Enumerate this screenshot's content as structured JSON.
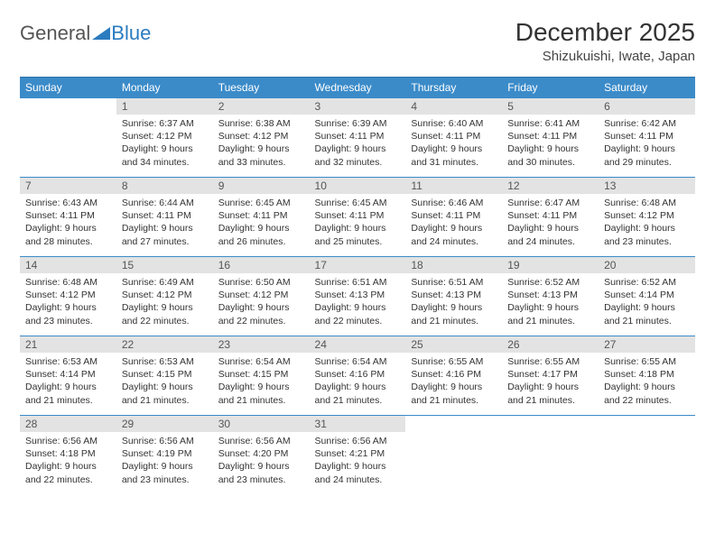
{
  "brand": {
    "part1": "General",
    "part2": "Blue"
  },
  "colors": {
    "header_bg": "#3b8bc9",
    "header_text": "#ffffff",
    "daynum_bg": "#e3e3e3",
    "border": "#3b8bc9",
    "brand_blue": "#2b7bbf",
    "text": "#333333"
  },
  "title": "December 2025",
  "location": "Shizukuishi, Iwate, Japan",
  "weekdays": [
    "Sunday",
    "Monday",
    "Tuesday",
    "Wednesday",
    "Thursday",
    "Friday",
    "Saturday"
  ],
  "weeks": [
    [
      {
        "n": "",
        "sr": "",
        "ss": "",
        "dl1": "",
        "dl2": "",
        "empty": true
      },
      {
        "n": "1",
        "sr": "Sunrise: 6:37 AM",
        "ss": "Sunset: 4:12 PM",
        "dl1": "Daylight: 9 hours",
        "dl2": "and 34 minutes."
      },
      {
        "n": "2",
        "sr": "Sunrise: 6:38 AM",
        "ss": "Sunset: 4:12 PM",
        "dl1": "Daylight: 9 hours",
        "dl2": "and 33 minutes."
      },
      {
        "n": "3",
        "sr": "Sunrise: 6:39 AM",
        "ss": "Sunset: 4:11 PM",
        "dl1": "Daylight: 9 hours",
        "dl2": "and 32 minutes."
      },
      {
        "n": "4",
        "sr": "Sunrise: 6:40 AM",
        "ss": "Sunset: 4:11 PM",
        "dl1": "Daylight: 9 hours",
        "dl2": "and 31 minutes."
      },
      {
        "n": "5",
        "sr": "Sunrise: 6:41 AM",
        "ss": "Sunset: 4:11 PM",
        "dl1": "Daylight: 9 hours",
        "dl2": "and 30 minutes."
      },
      {
        "n": "6",
        "sr": "Sunrise: 6:42 AM",
        "ss": "Sunset: 4:11 PM",
        "dl1": "Daylight: 9 hours",
        "dl2": "and 29 minutes."
      }
    ],
    [
      {
        "n": "7",
        "sr": "Sunrise: 6:43 AM",
        "ss": "Sunset: 4:11 PM",
        "dl1": "Daylight: 9 hours",
        "dl2": "and 28 minutes."
      },
      {
        "n": "8",
        "sr": "Sunrise: 6:44 AM",
        "ss": "Sunset: 4:11 PM",
        "dl1": "Daylight: 9 hours",
        "dl2": "and 27 minutes."
      },
      {
        "n": "9",
        "sr": "Sunrise: 6:45 AM",
        "ss": "Sunset: 4:11 PM",
        "dl1": "Daylight: 9 hours",
        "dl2": "and 26 minutes."
      },
      {
        "n": "10",
        "sr": "Sunrise: 6:45 AM",
        "ss": "Sunset: 4:11 PM",
        "dl1": "Daylight: 9 hours",
        "dl2": "and 25 minutes."
      },
      {
        "n": "11",
        "sr": "Sunrise: 6:46 AM",
        "ss": "Sunset: 4:11 PM",
        "dl1": "Daylight: 9 hours",
        "dl2": "and 24 minutes."
      },
      {
        "n": "12",
        "sr": "Sunrise: 6:47 AM",
        "ss": "Sunset: 4:11 PM",
        "dl1": "Daylight: 9 hours",
        "dl2": "and 24 minutes."
      },
      {
        "n": "13",
        "sr": "Sunrise: 6:48 AM",
        "ss": "Sunset: 4:12 PM",
        "dl1": "Daylight: 9 hours",
        "dl2": "and 23 minutes."
      }
    ],
    [
      {
        "n": "14",
        "sr": "Sunrise: 6:48 AM",
        "ss": "Sunset: 4:12 PM",
        "dl1": "Daylight: 9 hours",
        "dl2": "and 23 minutes."
      },
      {
        "n": "15",
        "sr": "Sunrise: 6:49 AM",
        "ss": "Sunset: 4:12 PM",
        "dl1": "Daylight: 9 hours",
        "dl2": "and 22 minutes."
      },
      {
        "n": "16",
        "sr": "Sunrise: 6:50 AM",
        "ss": "Sunset: 4:12 PM",
        "dl1": "Daylight: 9 hours",
        "dl2": "and 22 minutes."
      },
      {
        "n": "17",
        "sr": "Sunrise: 6:51 AM",
        "ss": "Sunset: 4:13 PM",
        "dl1": "Daylight: 9 hours",
        "dl2": "and 22 minutes."
      },
      {
        "n": "18",
        "sr": "Sunrise: 6:51 AM",
        "ss": "Sunset: 4:13 PM",
        "dl1": "Daylight: 9 hours",
        "dl2": "and 21 minutes."
      },
      {
        "n": "19",
        "sr": "Sunrise: 6:52 AM",
        "ss": "Sunset: 4:13 PM",
        "dl1": "Daylight: 9 hours",
        "dl2": "and 21 minutes."
      },
      {
        "n": "20",
        "sr": "Sunrise: 6:52 AM",
        "ss": "Sunset: 4:14 PM",
        "dl1": "Daylight: 9 hours",
        "dl2": "and 21 minutes."
      }
    ],
    [
      {
        "n": "21",
        "sr": "Sunrise: 6:53 AM",
        "ss": "Sunset: 4:14 PM",
        "dl1": "Daylight: 9 hours",
        "dl2": "and 21 minutes."
      },
      {
        "n": "22",
        "sr": "Sunrise: 6:53 AM",
        "ss": "Sunset: 4:15 PM",
        "dl1": "Daylight: 9 hours",
        "dl2": "and 21 minutes."
      },
      {
        "n": "23",
        "sr": "Sunrise: 6:54 AM",
        "ss": "Sunset: 4:15 PM",
        "dl1": "Daylight: 9 hours",
        "dl2": "and 21 minutes."
      },
      {
        "n": "24",
        "sr": "Sunrise: 6:54 AM",
        "ss": "Sunset: 4:16 PM",
        "dl1": "Daylight: 9 hours",
        "dl2": "and 21 minutes."
      },
      {
        "n": "25",
        "sr": "Sunrise: 6:55 AM",
        "ss": "Sunset: 4:16 PM",
        "dl1": "Daylight: 9 hours",
        "dl2": "and 21 minutes."
      },
      {
        "n": "26",
        "sr": "Sunrise: 6:55 AM",
        "ss": "Sunset: 4:17 PM",
        "dl1": "Daylight: 9 hours",
        "dl2": "and 21 minutes."
      },
      {
        "n": "27",
        "sr": "Sunrise: 6:55 AM",
        "ss": "Sunset: 4:18 PM",
        "dl1": "Daylight: 9 hours",
        "dl2": "and 22 minutes."
      }
    ],
    [
      {
        "n": "28",
        "sr": "Sunrise: 6:56 AM",
        "ss": "Sunset: 4:18 PM",
        "dl1": "Daylight: 9 hours",
        "dl2": "and 22 minutes."
      },
      {
        "n": "29",
        "sr": "Sunrise: 6:56 AM",
        "ss": "Sunset: 4:19 PM",
        "dl1": "Daylight: 9 hours",
        "dl2": "and 23 minutes."
      },
      {
        "n": "30",
        "sr": "Sunrise: 6:56 AM",
        "ss": "Sunset: 4:20 PM",
        "dl1": "Daylight: 9 hours",
        "dl2": "and 23 minutes."
      },
      {
        "n": "31",
        "sr": "Sunrise: 6:56 AM",
        "ss": "Sunset: 4:21 PM",
        "dl1": "Daylight: 9 hours",
        "dl2": "and 24 minutes."
      },
      {
        "n": "",
        "sr": "",
        "ss": "",
        "dl1": "",
        "dl2": "",
        "empty": true
      },
      {
        "n": "",
        "sr": "",
        "ss": "",
        "dl1": "",
        "dl2": "",
        "empty": true
      },
      {
        "n": "",
        "sr": "",
        "ss": "",
        "dl1": "",
        "dl2": "",
        "empty": true
      }
    ]
  ]
}
